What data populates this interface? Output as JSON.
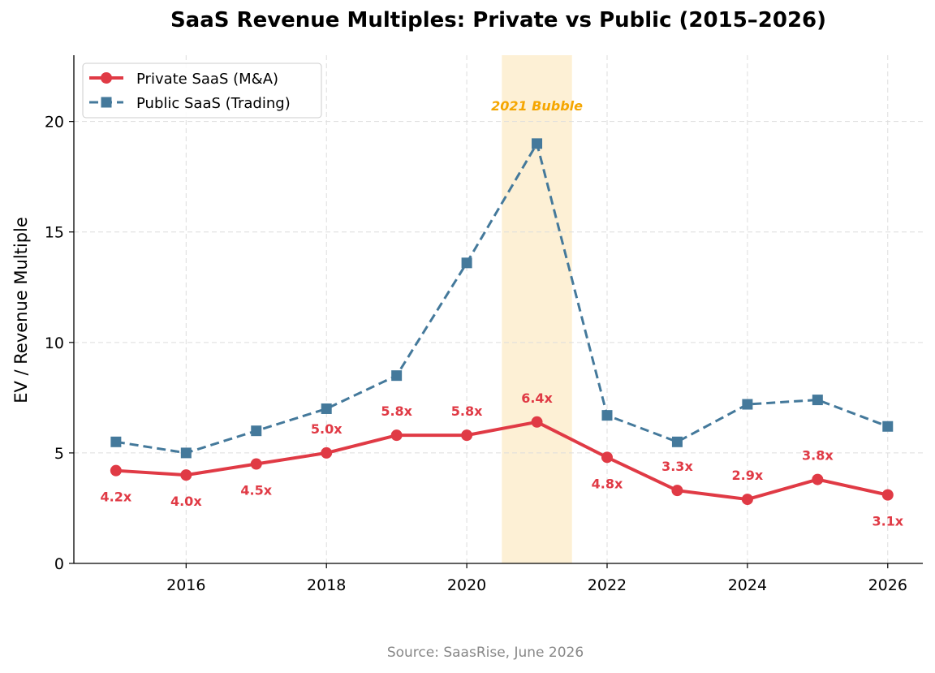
{
  "chart_data": {
    "type": "line",
    "title": "SaaS Revenue Multiples: Private vs Public (2015–2026)",
    "xlabel": "",
    "ylabel": "EV / Revenue Multiple",
    "x": [
      2015,
      2016,
      2017,
      2018,
      2019,
      2020,
      2021,
      2022,
      2023,
      2024,
      2025,
      2026
    ],
    "xlim": [
      2014.4,
      2026.5
    ],
    "ylim": [
      0,
      23
    ],
    "x_ticks": [
      "2016",
      "2018",
      "2020",
      "2022",
      "2024",
      "2026"
    ],
    "y_ticks": [
      "0",
      "5",
      "10",
      "15",
      "20"
    ],
    "grid": true,
    "legend_position": "top-left",
    "series": [
      {
        "name": "Private SaaS (M&A)",
        "values": [
          4.2,
          4.0,
          4.5,
          5.0,
          5.8,
          5.8,
          6.4,
          4.8,
          3.3,
          2.9,
          3.8,
          3.1
        ],
        "data_labels": [
          "4.2x",
          "4.0x",
          "4.5x",
          "5.0x",
          "5.8x",
          "5.8x",
          "6.4x",
          "4.8x",
          "3.3x",
          "2.9x",
          "3.8x",
          "3.1x"
        ],
        "color": "#e03a45",
        "style": "solid",
        "marker": "circle"
      },
      {
        "name": "Public SaaS (Trading)",
        "values": [
          5.5,
          5.0,
          6.0,
          7.0,
          8.5,
          13.6,
          19.0,
          6.7,
          5.5,
          7.2,
          7.4,
          6.2
        ],
        "color": "#44799b",
        "style": "dashed",
        "marker": "square"
      }
    ],
    "annotations": [
      {
        "text": "2021 Bubble",
        "x_range": [
          2020.5,
          2021.5
        ],
        "color": "#f5a600",
        "band_color": "#fdf0d5"
      }
    ],
    "source": "Source: SaasRise, June 2026"
  }
}
